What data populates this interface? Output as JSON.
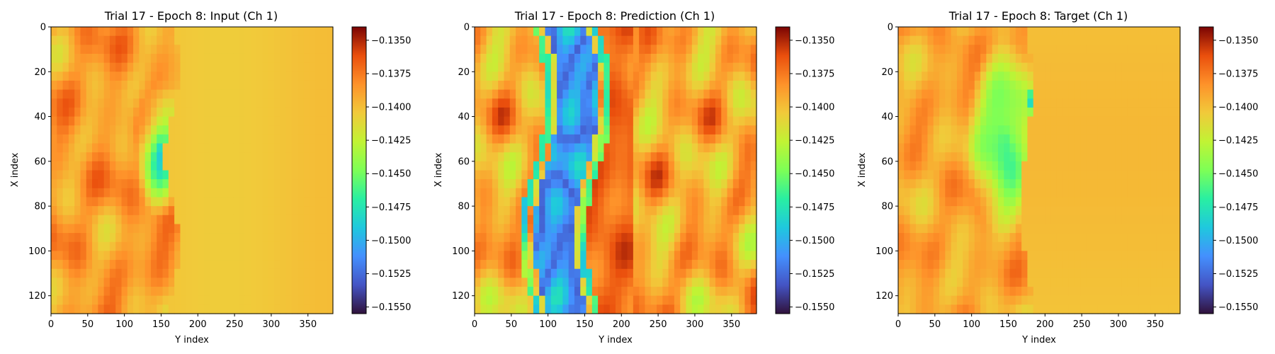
{
  "chart_data": [
    {
      "type": "heatmap",
      "title": "Trial 17 - Epoch 8: Input (Ch 1)",
      "xlabel": "Y index",
      "ylabel": "X index",
      "x_ticks": [
        "0",
        "50",
        "100",
        "150",
        "200",
        "250",
        "300",
        "350"
      ],
      "y_ticks": [
        "0",
        "20",
        "40",
        "60",
        "80",
        "100",
        "120"
      ],
      "x_range": [
        0,
        384
      ],
      "y_range": [
        0,
        128
      ],
      "colormap": "turbo",
      "color_range": [
        -0.1555,
        -0.134
      ],
      "colorbar_ticks": [
        "−0.1350",
        "−0.1375",
        "−0.1400",
        "−0.1425",
        "−0.1450",
        "−0.1475",
        "−0.1500",
        "−0.1525",
        "−0.1550"
      ],
      "colorbar_values": [
        -0.135,
        -0.1375,
        -0.14,
        -0.1425,
        -0.145,
        -0.1475,
        -0.15,
        -0.1525,
        -0.155
      ]
    },
    {
      "type": "heatmap",
      "title": "Trial 17 - Epoch 8: Prediction (Ch 1)",
      "xlabel": "Y index",
      "ylabel": "X index",
      "x_ticks": [
        "0",
        "50",
        "100",
        "150",
        "200",
        "250",
        "300",
        "350"
      ],
      "y_ticks": [
        "0",
        "20",
        "40",
        "60",
        "80",
        "100",
        "120"
      ],
      "x_range": [
        0,
        384
      ],
      "y_range": [
        0,
        128
      ],
      "colormap": "turbo",
      "color_range": [
        -0.1555,
        -0.134
      ],
      "colorbar_ticks": [
        "−0.1350",
        "−0.1375",
        "−0.1400",
        "−0.1425",
        "−0.1450",
        "−0.1475",
        "−0.1500",
        "−0.1525",
        "−0.1550"
      ],
      "colorbar_values": [
        -0.135,
        -0.1375,
        -0.14,
        -0.1425,
        -0.145,
        -0.1475,
        -0.15,
        -0.1525,
        -0.155
      ]
    },
    {
      "type": "heatmap",
      "title": "Trial 17 - Epoch 8: Target (Ch 1)",
      "xlabel": "Y index",
      "ylabel": "X index",
      "x_ticks": [
        "0",
        "50",
        "100",
        "150",
        "200",
        "250",
        "300",
        "350"
      ],
      "y_ticks": [
        "0",
        "20",
        "40",
        "60",
        "80",
        "100",
        "120"
      ],
      "x_range": [
        0,
        384
      ],
      "y_range": [
        0,
        128
      ],
      "colormap": "turbo",
      "color_range": [
        -0.1555,
        -0.134
      ],
      "colorbar_ticks": [
        "−0.1350",
        "−0.1375",
        "−0.1400",
        "−0.1425",
        "−0.1450",
        "−0.1475",
        "−0.1500",
        "−0.1525",
        "−0.1550"
      ],
      "colorbar_values": [
        -0.135,
        -0.1375,
        -0.14,
        -0.1425,
        -0.145,
        -0.1475,
        -0.15,
        -0.1525,
        -0.155
      ]
    }
  ]
}
